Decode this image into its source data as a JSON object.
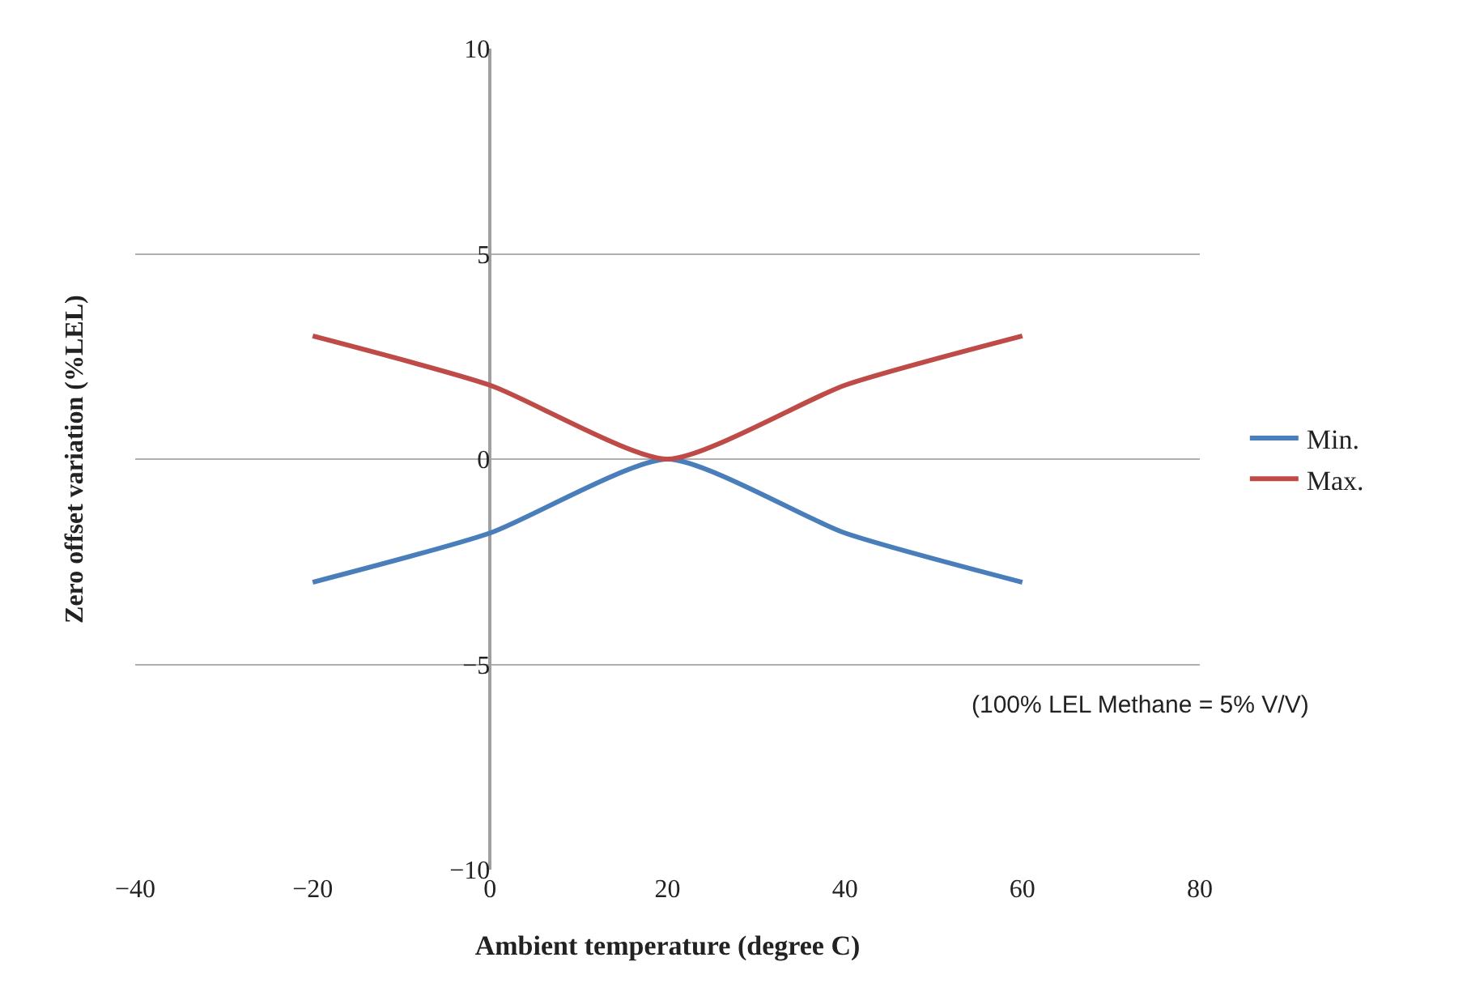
{
  "chart_data": {
    "type": "line",
    "xlabel": "Ambient temperature (degree C)",
    "ylabel": "Zero offset variation (%LEL)",
    "x": [
      -20,
      0,
      20,
      40,
      60
    ],
    "series": [
      {
        "name": "Min.",
        "color": "#4a7ebb",
        "values": [
          -3,
          -1.8,
          0,
          -1.8,
          -3
        ]
      },
      {
        "name": "Max.",
        "color": "#be4b48",
        "values": [
          3,
          1.8,
          0,
          1.8,
          3
        ]
      }
    ],
    "xlim": [
      -40,
      80
    ],
    "xticks": [
      -40,
      -20,
      0,
      20,
      40,
      60,
      80
    ],
    "ylim": [
      -10,
      10
    ],
    "yticks": [
      -10,
      -5,
      0,
      5,
      10
    ],
    "grid": "y",
    "legend": "right",
    "marker": "none",
    "line_style": "solid",
    "annotations": [
      "(100% LEL Methane = 5% V/V)"
    ]
  }
}
